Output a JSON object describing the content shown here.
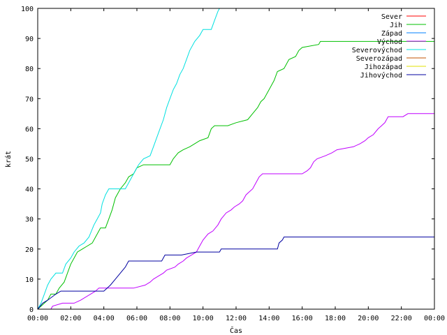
{
  "chart_data": {
    "type": "line",
    "xlabel": "Čas",
    "ylabel": "krát",
    "xlim": [
      0,
      24
    ],
    "ylim": [
      0,
      100
    ],
    "x_ticks": [
      {
        "v": 0,
        "label": "00:00"
      },
      {
        "v": 2,
        "label": "02:00"
      },
      {
        "v": 4,
        "label": "04:00"
      },
      {
        "v": 6,
        "label": "06:00"
      },
      {
        "v": 8,
        "label": "08:00"
      },
      {
        "v": 10,
        "label": "10:00"
      },
      {
        "v": 12,
        "label": "12:00"
      },
      {
        "v": 14,
        "label": "14:00"
      },
      {
        "v": 16,
        "label": "16:00"
      },
      {
        "v": 18,
        "label": "18:00"
      },
      {
        "v": 20,
        "label": "20:00"
      },
      {
        "v": 22,
        "label": "22:00"
      },
      {
        "v": 24,
        "label": "00:00"
      }
    ],
    "y_ticks": [
      {
        "v": 0,
        "label": "0"
      },
      {
        "v": 10,
        "label": "10"
      },
      {
        "v": 20,
        "label": "20"
      },
      {
        "v": 30,
        "label": "30"
      },
      {
        "v": 40,
        "label": "40"
      },
      {
        "v": 50,
        "label": "50"
      },
      {
        "v": 60,
        "label": "60"
      },
      {
        "v": 70,
        "label": "70"
      },
      {
        "v": 80,
        "label": "80"
      },
      {
        "v": 90,
        "label": "90"
      },
      {
        "v": 100,
        "label": "100"
      }
    ],
    "grid": false,
    "legend_position": "top-right",
    "series": [
      {
        "name": "Sever",
        "color": "#ff0000",
        "points": []
      },
      {
        "name": "Jih",
        "color": "#00c000",
        "points": [
          [
            0,
            0
          ],
          [
            0.2,
            1
          ],
          [
            0.4,
            2
          ],
          [
            0.6,
            3
          ],
          [
            0.8,
            5
          ],
          [
            1.1,
            5
          ],
          [
            1.3,
            7
          ],
          [
            1.6,
            9
          ],
          [
            1.8,
            12
          ],
          [
            2.0,
            15
          ],
          [
            2.2,
            17
          ],
          [
            2.4,
            19
          ],
          [
            2.7,
            20
          ],
          [
            3.0,
            21
          ],
          [
            3.3,
            22
          ],
          [
            3.5,
            24
          ],
          [
            3.8,
            27
          ],
          [
            4.1,
            27
          ],
          [
            4.3,
            30
          ],
          [
            4.5,
            33
          ],
          [
            4.7,
            37
          ],
          [
            5.0,
            40
          ],
          [
            5.3,
            42
          ],
          [
            5.5,
            44
          ],
          [
            5.8,
            45
          ],
          [
            6.0,
            47
          ],
          [
            6.4,
            48
          ],
          [
            7.0,
            48
          ],
          [
            8.0,
            48
          ],
          [
            8.2,
            50
          ],
          [
            8.5,
            52
          ],
          [
            8.8,
            53
          ],
          [
            9.2,
            54
          ],
          [
            9.5,
            55
          ],
          [
            9.8,
            56
          ],
          [
            10.3,
            57
          ],
          [
            10.5,
            60
          ],
          [
            10.7,
            61
          ],
          [
            11.5,
            61
          ],
          [
            12.0,
            62
          ],
          [
            12.7,
            63
          ],
          [
            13.0,
            65
          ],
          [
            13.3,
            67
          ],
          [
            13.5,
            69
          ],
          [
            13.7,
            70
          ],
          [
            14.0,
            73
          ],
          [
            14.3,
            76
          ],
          [
            14.5,
            79
          ],
          [
            14.9,
            80
          ],
          [
            15.2,
            83
          ],
          [
            15.6,
            84
          ],
          [
            15.8,
            86
          ],
          [
            16.0,
            87
          ],
          [
            17.0,
            88
          ],
          [
            17.1,
            89
          ],
          [
            24.0,
            89
          ]
        ]
      },
      {
        "name": "Západ",
        "color": "#0080ff",
        "points": []
      },
      {
        "name": "Východ",
        "color": "#c000ff",
        "points": [
          [
            0,
            0
          ],
          [
            0.8,
            0
          ],
          [
            0.9,
            1
          ],
          [
            1.5,
            2
          ],
          [
            2.2,
            2
          ],
          [
            2.6,
            3
          ],
          [
            3.2,
            5
          ],
          [
            3.5,
            6
          ],
          [
            3.7,
            7
          ],
          [
            4.4,
            7
          ],
          [
            5.0,
            7
          ],
          [
            5.8,
            7
          ],
          [
            6.5,
            8
          ],
          [
            6.8,
            9
          ],
          [
            7.0,
            10
          ],
          [
            7.3,
            11
          ],
          [
            7.6,
            12
          ],
          [
            7.8,
            13
          ],
          [
            8.3,
            14
          ],
          [
            8.5,
            15
          ],
          [
            8.8,
            16
          ],
          [
            9.0,
            17
          ],
          [
            9.3,
            18
          ],
          [
            9.6,
            19
          ],
          [
            9.8,
            21
          ],
          [
            10.0,
            23
          ],
          [
            10.3,
            25
          ],
          [
            10.6,
            26
          ],
          [
            10.9,
            28
          ],
          [
            11.1,
            30
          ],
          [
            11.4,
            32
          ],
          [
            11.7,
            33
          ],
          [
            11.9,
            34
          ],
          [
            12.2,
            35
          ],
          [
            12.4,
            36
          ],
          [
            12.6,
            38
          ],
          [
            12.8,
            39
          ],
          [
            13.0,
            40
          ],
          [
            13.2,
            42
          ],
          [
            13.4,
            44
          ],
          [
            13.6,
            45
          ],
          [
            15.0,
            45
          ],
          [
            16.0,
            45
          ],
          [
            16.3,
            46
          ],
          [
            16.5,
            47
          ],
          [
            16.7,
            49
          ],
          [
            16.9,
            50
          ],
          [
            17.4,
            51
          ],
          [
            17.8,
            52
          ],
          [
            18.1,
            53
          ],
          [
            19.1,
            54
          ],
          [
            19.5,
            55
          ],
          [
            19.8,
            56
          ],
          [
            20.0,
            57
          ],
          [
            20.3,
            58
          ],
          [
            20.6,
            60
          ],
          [
            20.8,
            61
          ],
          [
            21.0,
            62
          ],
          [
            21.2,
            64
          ],
          [
            22.1,
            64
          ],
          [
            22.4,
            65
          ],
          [
            24.0,
            65
          ]
        ]
      },
      {
        "name": "Severovýchod",
        "color": "#00e0e0",
        "points": [
          [
            0,
            0
          ],
          [
            0.2,
            2
          ],
          [
            0.4,
            5
          ],
          [
            0.6,
            8
          ],
          [
            0.8,
            10
          ],
          [
            1.1,
            12
          ],
          [
            1.5,
            12
          ],
          [
            1.7,
            15
          ],
          [
            2.0,
            17
          ],
          [
            2.2,
            19
          ],
          [
            2.5,
            21
          ],
          [
            2.8,
            22
          ],
          [
            3.1,
            24
          ],
          [
            3.4,
            28
          ],
          [
            3.6,
            30
          ],
          [
            3.8,
            32
          ],
          [
            3.9,
            35
          ],
          [
            4.1,
            38
          ],
          [
            4.3,
            40
          ],
          [
            5.3,
            40
          ],
          [
            5.5,
            42
          ],
          [
            5.7,
            44
          ],
          [
            5.9,
            46
          ],
          [
            6.1,
            48
          ],
          [
            6.4,
            50
          ],
          [
            6.8,
            51
          ],
          [
            7.0,
            54
          ],
          [
            7.2,
            57
          ],
          [
            7.4,
            60
          ],
          [
            7.6,
            63
          ],
          [
            7.8,
            67
          ],
          [
            8.0,
            70
          ],
          [
            8.2,
            73
          ],
          [
            8.4,
            75
          ],
          [
            8.6,
            78
          ],
          [
            8.8,
            80
          ],
          [
            9.0,
            83
          ],
          [
            9.2,
            86
          ],
          [
            9.5,
            89
          ],
          [
            9.8,
            91
          ],
          [
            10.0,
            93
          ],
          [
            10.5,
            93
          ],
          [
            10.7,
            96
          ],
          [
            10.9,
            99
          ],
          [
            11.0,
            100
          ]
        ]
      },
      {
        "name": "Severozápad",
        "color": "#c05000",
        "points": []
      },
      {
        "name": "Jihozápad",
        "color": "#e0e000",
        "points": []
      },
      {
        "name": "Jihovýchod",
        "color": "#0000a0",
        "points": [
          [
            0,
            0
          ],
          [
            0.3,
            2
          ],
          [
            0.6,
            3
          ],
          [
            1.1,
            5
          ],
          [
            1.4,
            6
          ],
          [
            3.0,
            6
          ],
          [
            4.0,
            6
          ],
          [
            4.4,
            8
          ],
          [
            4.7,
            10
          ],
          [
            5.0,
            12
          ],
          [
            5.3,
            14
          ],
          [
            5.5,
            16
          ],
          [
            7.5,
            16
          ],
          [
            7.7,
            18
          ],
          [
            8.7,
            18
          ],
          [
            9.6,
            19
          ],
          [
            11.0,
            19
          ],
          [
            11.1,
            20
          ],
          [
            14.5,
            20
          ],
          [
            14.6,
            22
          ],
          [
            14.8,
            23
          ],
          [
            14.9,
            24
          ],
          [
            24.0,
            24
          ]
        ]
      }
    ]
  }
}
